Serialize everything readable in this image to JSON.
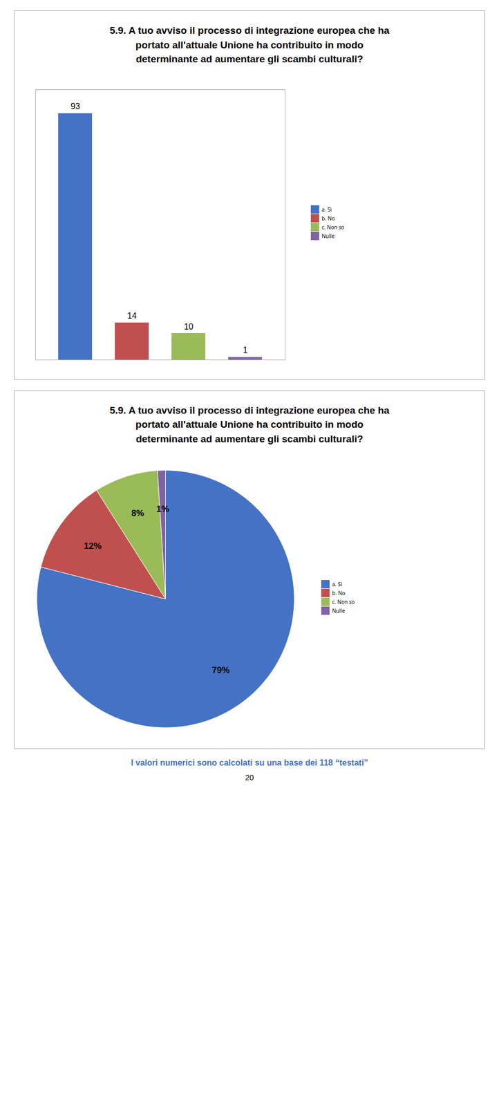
{
  "chart_data": [
    {
      "type": "bar",
      "title": "5.9. A tuo avviso il processo di integrazione europea che ha portato all'attuale Unione ha contribuito in modo determinante ad aumentare gli scambi culturali?",
      "categories": [
        "a. Sì",
        "b. No",
        "c. Non so",
        "Nulle"
      ],
      "values": [
        93,
        14,
        10,
        1
      ],
      "colors": [
        "#4472c4",
        "#c0504d",
        "#9bbb59",
        "#8064a2"
      ],
      "ylim": [
        0,
        102
      ],
      "tick_labels": false,
      "data_labels": true,
      "legend": "right"
    },
    {
      "type": "pie",
      "title": "5.9. A tuo avviso il processo di integrazione europea che ha portato all'attuale Unione ha contribuito in modo determinante ad aumentare gli scambi culturali?",
      "categories": [
        "a. Sì",
        "b. No",
        "c. Non so",
        "Nulle"
      ],
      "values": [
        79,
        12,
        8,
        1
      ],
      "value_labels": [
        "79%",
        "12%",
        "8%",
        "1%"
      ],
      "colors": [
        "#4472c4",
        "#c0504d",
        "#9bbb59",
        "#8064a2"
      ],
      "data_labels": true,
      "legend": "right",
      "annotations": [
        "I valori numerici sono calcolati su una base dei 118 “testati”",
        "20"
      ]
    }
  ]
}
